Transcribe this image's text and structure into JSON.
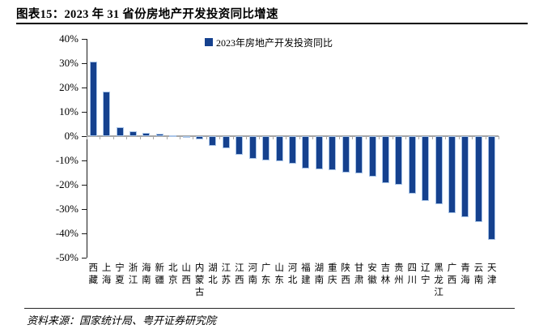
{
  "title": "图表15：2023 年 31 省份房地产开发投资同比增速",
  "source": "资料来源：国家统计局、粤开证券研究院",
  "chart_data": {
    "type": "bar",
    "title": "图表15：2023 年 31 省份房地产开发投资同比增速",
    "legend": "2023年房地产开发投资同比",
    "legend_position": "top-center",
    "xlabel": "",
    "ylabel": "",
    "ylim": [
      -50,
      40
    ],
    "ytick_step": 10,
    "ytick_labels": [
      "40%",
      "30%",
      "20%",
      "10%",
      "0%",
      "-10%",
      "-20%",
      "-30%",
      "-40%",
      "-50%"
    ],
    "grid": false,
    "categories": [
      "西藏",
      "上海",
      "宁夏",
      "浙江",
      "海南",
      "新疆",
      "北京",
      "山西",
      "内蒙古",
      "湖北",
      "江苏",
      "江西",
      "河南",
      "广东",
      "山东",
      "河北",
      "福建",
      "湖南",
      "重庆",
      "陕西",
      "甘肃",
      "安徽",
      "吉林",
      "贵州",
      "四川",
      "辽宁",
      "黑龙江",
      "广西",
      "青海",
      "云南",
      "天津"
    ],
    "values": [
      30.7,
      18.3,
      3.8,
      2.0,
      1.5,
      1.0,
      0.4,
      -0.6,
      -1.4,
      -4.0,
      -4.9,
      -7.7,
      -9.4,
      -10.0,
      -10.3,
      -11.4,
      -13.4,
      -13.6,
      -14.0,
      -15.0,
      -15.2,
      -16.7,
      -19.3,
      -20.1,
      -23.8,
      -26.5,
      -28.0,
      -31.8,
      -33.2,
      -35.3,
      -42.7
    ],
    "bar_color": "#15418E",
    "bar_border_color": "#A9C5E8",
    "axis_color": "#1A1A1A",
    "zero_line_color": "#A6A6A6"
  }
}
